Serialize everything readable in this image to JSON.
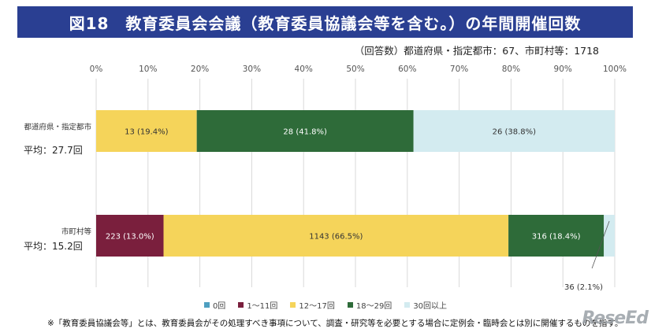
{
  "page": {
    "title": "図18　教育委員会会議（教育委員協議会等を含む。）の年間開催回数",
    "subtitle": "（回答数）都道府県・指定都市：67、市町村等：1718",
    "footnote": "※「教育委員協議会等」とは、教育委員会がその処理すべき事項について、調査・研究等を必要とする場合に定例会・臨時会とは別に開催するものを指す。",
    "logo_text": "ReseEd"
  },
  "chart_data": {
    "type": "bar",
    "orientation": "horizontal",
    "stacked": "percent",
    "x_ticks": [
      "0%",
      "10%",
      "20%",
      "30%",
      "40%",
      "50%",
      "60%",
      "70%",
      "80%",
      "90%",
      "100%"
    ],
    "xlim": [
      0,
      100
    ],
    "grid": true,
    "legend_position": "bottom",
    "categories": [
      {
        "label": "都道府県・指定都市",
        "average": "平均：27.7回"
      },
      {
        "label": "市町村等",
        "average": "平均：15.2回"
      }
    ],
    "series": [
      {
        "name": "0回",
        "color": "#4e9fc0",
        "values": [
          0,
          0
        ],
        "counts": [
          0,
          0
        ],
        "labels": [
          "",
          ""
        ]
      },
      {
        "name": "1～11回",
        "color": "#7a1f3d",
        "values": [
          0,
          13.0
        ],
        "counts": [
          0,
          223
        ],
        "labels": [
          "",
          "223 (13.0%)"
        ]
      },
      {
        "name": "12～17回",
        "color": "#f5d45a",
        "values": [
          19.4,
          66.5
        ],
        "counts": [
          13,
          1143
        ],
        "labels": [
          "13 (19.4%)",
          "1143 (66.5%)"
        ]
      },
      {
        "name": "18～29回",
        "color": "#2e6b39",
        "values": [
          41.8,
          18.4
        ],
        "counts": [
          28,
          316
        ],
        "labels": [
          "28 (41.8%)",
          "316 (18.4%)"
        ]
      },
      {
        "name": "30回以上",
        "color": "#d3ebf0",
        "values": [
          38.8,
          2.1
        ],
        "counts": [
          26,
          36
        ],
        "labels": [
          "26 (38.8%)",
          "36 (2.1%)"
        ]
      }
    ]
  }
}
